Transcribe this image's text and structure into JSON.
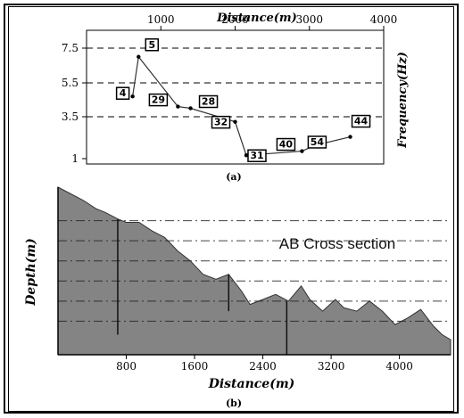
{
  "chart_data": [
    {
      "type": "line",
      "caption": "(a)",
      "xlabel": "Distance(m)",
      "ylabel": "Frequency(Hz)",
      "xlim": [
        0,
        4000
      ],
      "ylim": [
        1,
        7.5
      ],
      "x_ticks": [
        "1000",
        "2000",
        "3000",
        "4000"
      ],
      "y_ticks": [
        "7.5",
        "5.5",
        "3.5",
        "1"
      ],
      "y_tick_values": [
        7.5,
        5.5,
        3.5,
        1
      ],
      "x_tick_values": [
        1000,
        2000,
        3000,
        4000
      ],
      "grid": "dashed-horizontal",
      "x_axis_position": "top",
      "points": [
        {
          "x": 620,
          "y": 4.7,
          "label": "4"
        },
        {
          "x": 700,
          "y": 7.0,
          "label": "5"
        },
        {
          "x": 1230,
          "y": 4.1,
          "label": "29"
        },
        {
          "x": 1400,
          "y": 4.0,
          "label": "28"
        },
        {
          "x": 2000,
          "y": 3.2,
          "label": "32"
        },
        {
          "x": 2150,
          "y": 1.2,
          "label": "31"
        },
        {
          "x": 2900,
          "y": 1.45,
          "label": "40"
        },
        {
          "x": 3080,
          "y": 1.8,
          "label": "54"
        },
        {
          "x": 3550,
          "y": 2.3,
          "label": "44"
        }
      ]
    },
    {
      "type": "area",
      "caption": "(b)",
      "title": "AB Cross section",
      "xlabel": "Distance(m)",
      "ylabel": "Depth(m)",
      "xlim": [
        0,
        4600
      ],
      "x_ticks": [
        "800",
        "1600",
        "2400",
        "3200",
        "4000"
      ],
      "x_tick_values": [
        800,
        1600,
        2400,
        3200,
        4000
      ],
      "fill_color": "#848484",
      "grid": "dash-dot-horizontal",
      "profile": [
        [
          0,
          100
        ],
        [
          150,
          96
        ],
        [
          300,
          92
        ],
        [
          450,
          87
        ],
        [
          550,
          85
        ],
        [
          700,
          81
        ],
        [
          800,
          79
        ],
        [
          950,
          79
        ],
        [
          1100,
          74
        ],
        [
          1250,
          70
        ],
        [
          1400,
          62
        ],
        [
          1550,
          56
        ],
        [
          1700,
          48
        ],
        [
          1850,
          45
        ],
        [
          2000,
          48
        ],
        [
          2150,
          38
        ],
        [
          2250,
          30
        ],
        [
          2400,
          33
        ],
        [
          2550,
          36
        ],
        [
          2700,
          32
        ],
        [
          2850,
          41
        ],
        [
          2950,
          33
        ],
        [
          3100,
          26
        ],
        [
          3250,
          33
        ],
        [
          3350,
          28
        ],
        [
          3500,
          26
        ],
        [
          3650,
          32
        ],
        [
          3800,
          26
        ],
        [
          3950,
          18
        ],
        [
          4100,
          22
        ],
        [
          4250,
          27
        ],
        [
          4400,
          17
        ],
        [
          4500,
          12
        ],
        [
          4600,
          9
        ]
      ],
      "verticals": [
        {
          "x": 700,
          "top": 81,
          "bottom": 12
        },
        {
          "x": 2000,
          "top": 48,
          "bottom": 26
        },
        {
          "x": 2680,
          "top": 32,
          "bottom": 0
        }
      ]
    }
  ]
}
